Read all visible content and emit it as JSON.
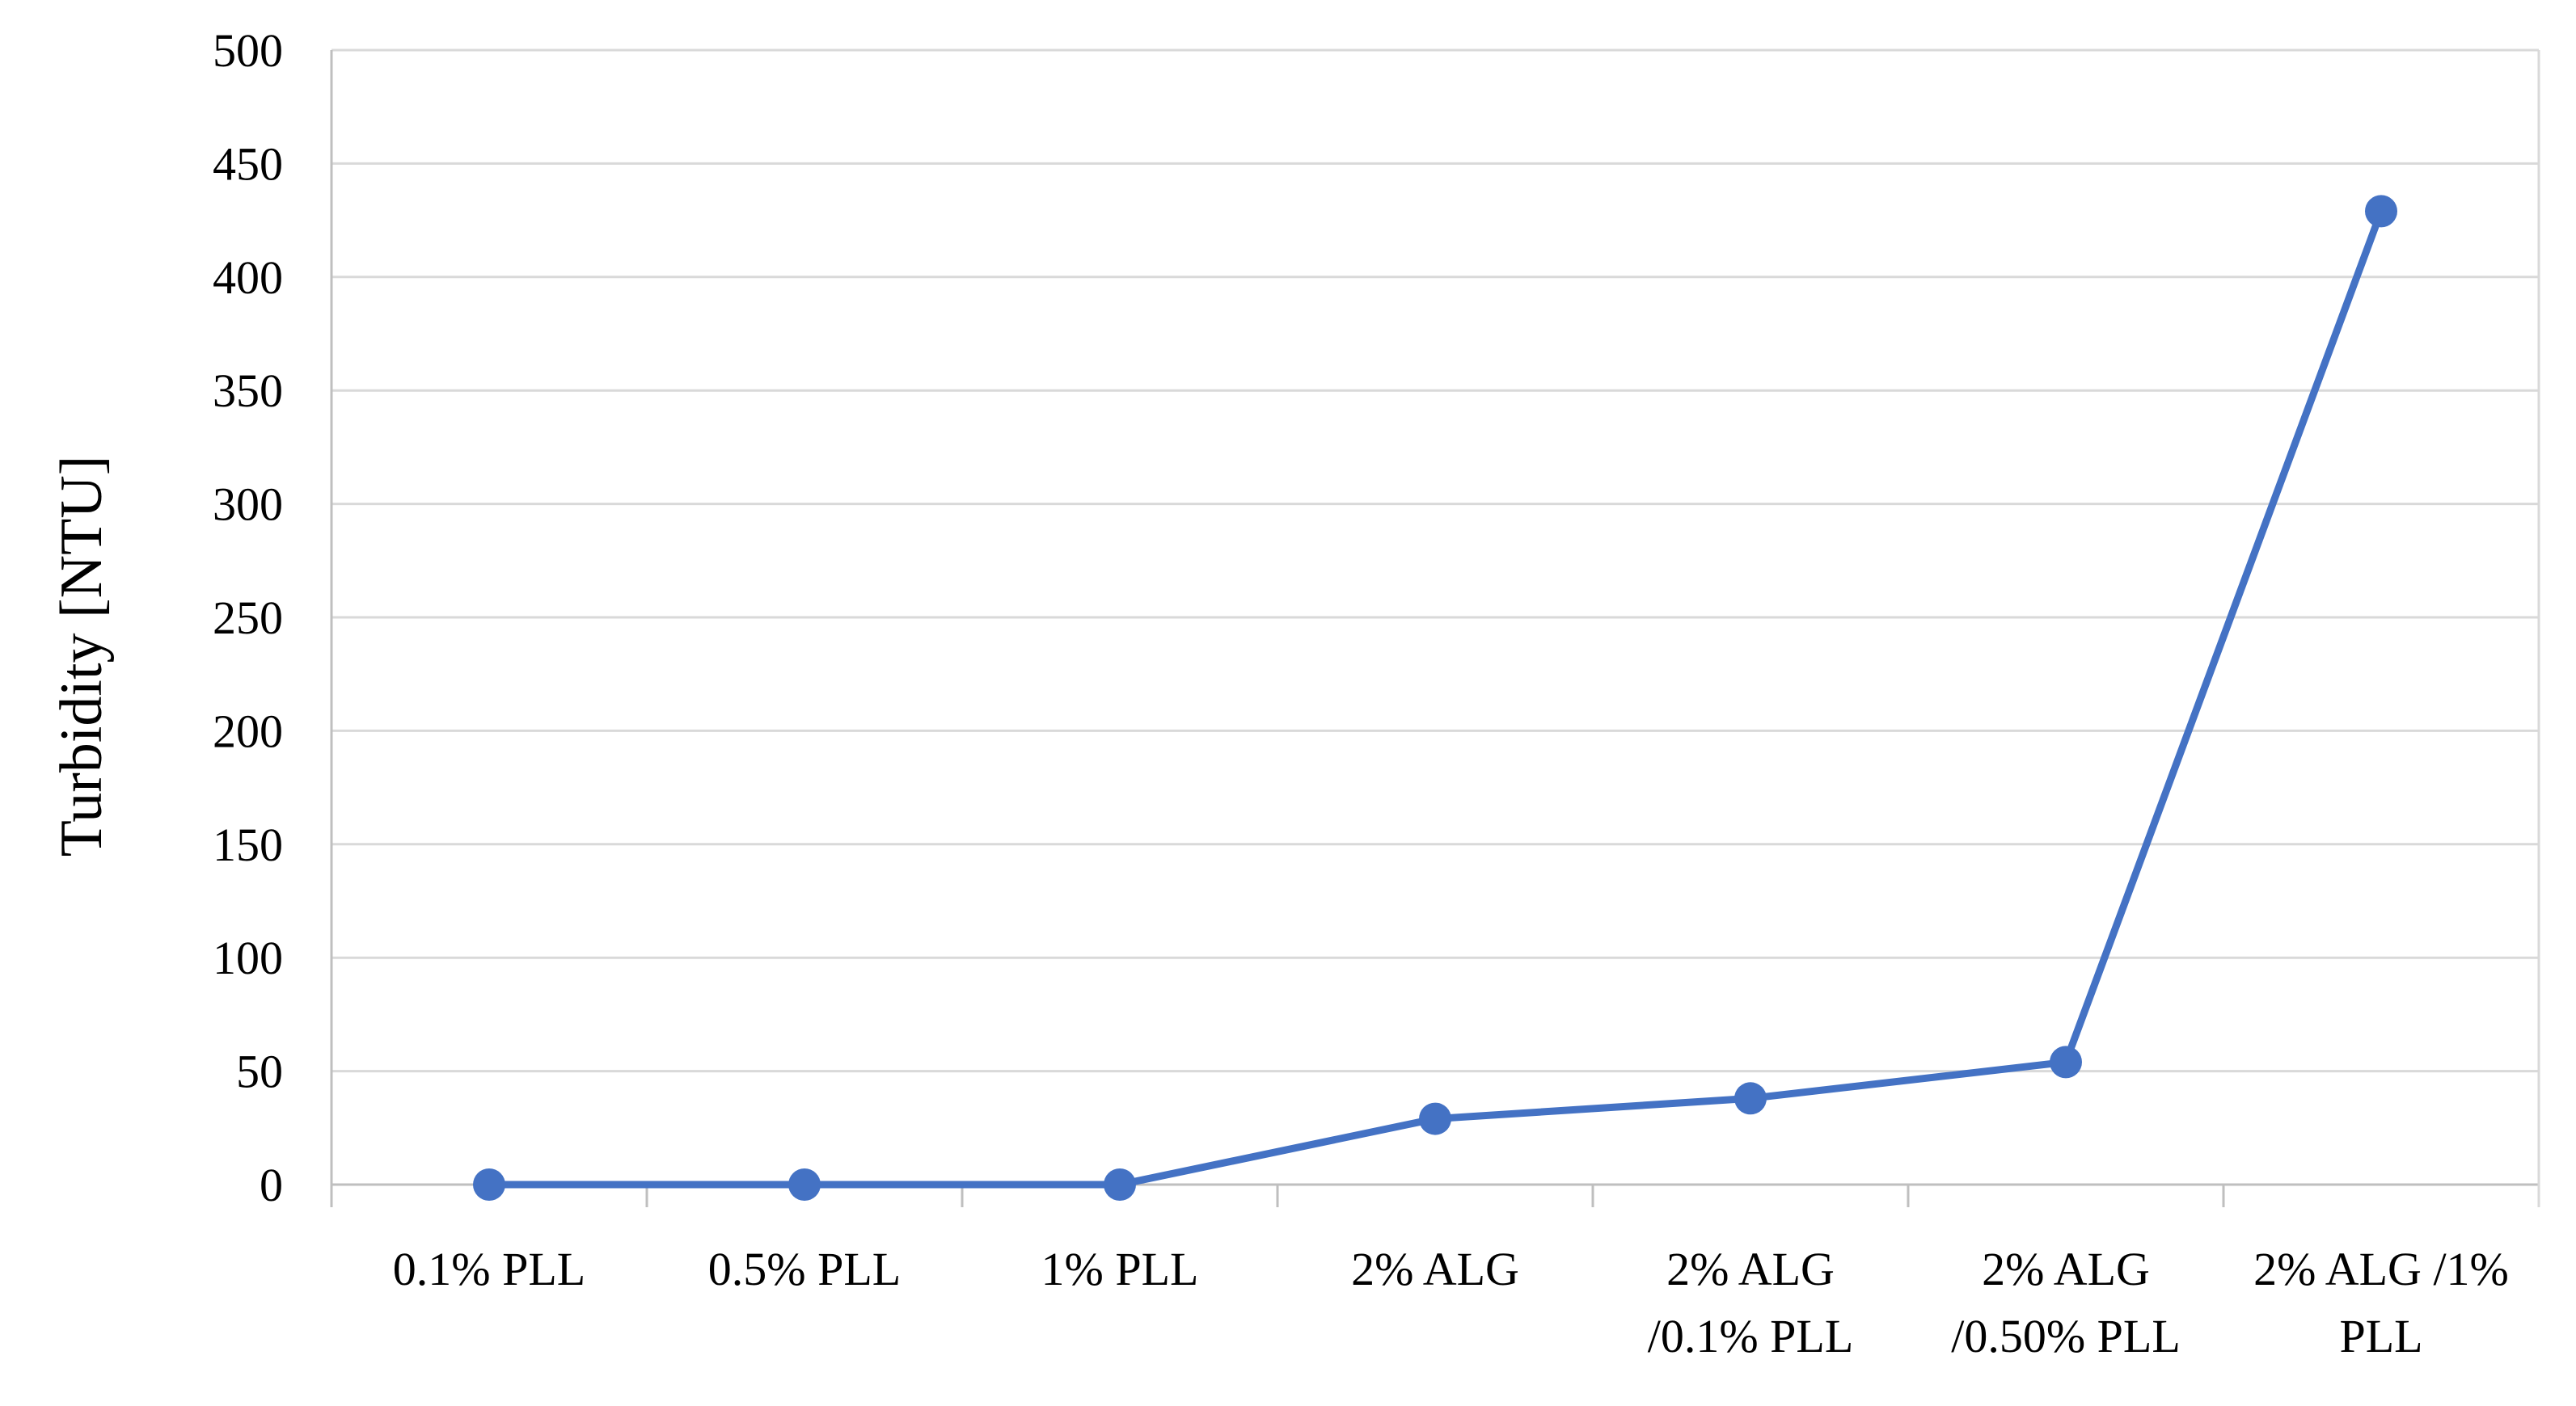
{
  "chart_data": {
    "type": "line",
    "title": "",
    "xlabel": "",
    "ylabel": "Turbidity [NTU]",
    "ylim": [
      0,
      500
    ],
    "yticks": [
      0,
      50,
      100,
      150,
      200,
      250,
      300,
      350,
      400,
      450,
      500
    ],
    "grid": true,
    "legend": "none",
    "categories": [
      [
        "0.1% PLL"
      ],
      [
        "0.5% PLL"
      ],
      [
        "1% PLL"
      ],
      [
        "2% ALG"
      ],
      [
        "2% ALG",
        "/0.1% PLL"
      ],
      [
        "2% ALG",
        "/0.50% PLL"
      ],
      [
        "2% ALG /1%",
        "PLL"
      ]
    ],
    "series": [
      {
        "values": [
          0,
          0,
          0,
          29,
          38,
          54,
          429
        ]
      }
    ],
    "colors": {
      "series": "#4472C4",
      "grid": "#D9D9D9",
      "axis": "#BFBFBF"
    }
  }
}
